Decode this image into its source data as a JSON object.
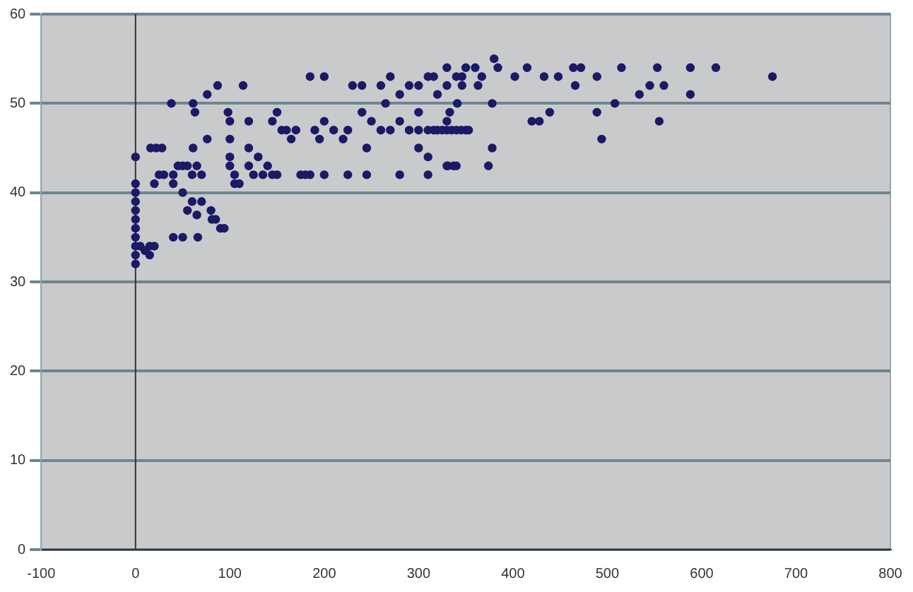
{
  "chart_data": {
    "type": "scatter",
    "xlim": [
      -100,
      800
    ],
    "ylim": [
      0,
      60
    ],
    "xticks": [
      -100,
      0,
      100,
      200,
      300,
      400,
      500,
      600,
      700,
      800
    ],
    "yticks": [
      0,
      10,
      20,
      30,
      40,
      50,
      60
    ],
    "grid": "y",
    "marker": "circle",
    "legend": false,
    "series": [
      {
        "color": "#1a1a66",
        "x": [
          0,
          0,
          0,
          0,
          0,
          0,
          0,
          0,
          0,
          0,
          0,
          5,
          10,
          15,
          20,
          15,
          40,
          50,
          66,
          16,
          22,
          28,
          38,
          61,
          63,
          76,
          87,
          114,
          185,
          200,
          98,
          20,
          25,
          30,
          40,
          45,
          50,
          55,
          60,
          65,
          70,
          40,
          50,
          60,
          70,
          55,
          65,
          80,
          85,
          90,
          81,
          94,
          61,
          76,
          100,
          100,
          100,
          100,
          105,
          105,
          110,
          120,
          120,
          125,
          130,
          135,
          140,
          145,
          150,
          155,
          160,
          165,
          170,
          175,
          180,
          185,
          190,
          195,
          200,
          200,
          150,
          145,
          120,
          210,
          220,
          225,
          225,
          240,
          250,
          260,
          270,
          280,
          290,
          300,
          310,
          320,
          330,
          340,
          350,
          245,
          300,
          310,
          330,
          340,
          245,
          280,
          310,
          230,
          240,
          260,
          270,
          280,
          290,
          300,
          310,
          320,
          330,
          340,
          350,
          360,
          265,
          300,
          330,
          316,
          330,
          346,
          380,
          384,
          402,
          415,
          433,
          448,
          464,
          472,
          466,
          489,
          515,
          553,
          545,
          560,
          588,
          588,
          615,
          675,
          534,
          508,
          489,
          494,
          555,
          420,
          428,
          439,
          378,
          378,
          374,
          341,
          333,
          316,
          325,
          335,
          345,
          353,
          331,
          337,
          346,
          363,
          367
        ],
        "values": [
          32,
          33,
          34,
          35,
          36,
          37,
          38,
          39,
          40,
          41,
          44,
          34,
          33.5,
          34,
          34,
          33,
          35,
          35,
          35,
          45,
          45,
          45,
          50,
          50,
          49,
          51,
          52,
          52,
          53,
          53,
          49,
          41,
          42,
          42,
          42,
          43,
          43,
          43,
          42,
          43,
          42,
          41,
          40,
          39,
          39,
          38,
          37.5,
          38,
          37,
          36,
          37,
          36,
          45,
          46,
          48,
          46,
          44,
          43,
          42,
          41,
          41,
          43,
          45,
          42,
          44,
          42,
          43,
          42,
          42,
          47,
          47,
          46,
          47,
          42,
          42,
          42,
          47,
          46,
          42,
          48,
          49,
          48,
          48,
          47,
          46,
          42,
          47,
          49,
          48,
          47,
          47,
          48,
          47,
          47,
          47,
          47,
          47,
          47,
          47,
          45,
          45,
          44,
          43,
          43,
          42,
          42,
          42,
          52,
          52,
          52,
          53,
          51,
          52,
          52,
          53,
          51,
          52,
          53,
          54,
          54,
          50,
          49,
          48,
          53,
          54,
          53,
          55,
          54,
          53,
          54,
          53,
          53,
          54,
          54,
          52,
          53,
          54,
          54,
          52,
          52,
          54,
          51,
          54,
          53,
          51,
          50,
          49,
          46,
          48,
          48,
          48,
          49,
          50,
          45,
          43,
          50,
          49,
          47,
          47,
          47,
          47,
          47,
          43,
          43,
          52,
          52,
          53
        ]
      }
    ]
  }
}
